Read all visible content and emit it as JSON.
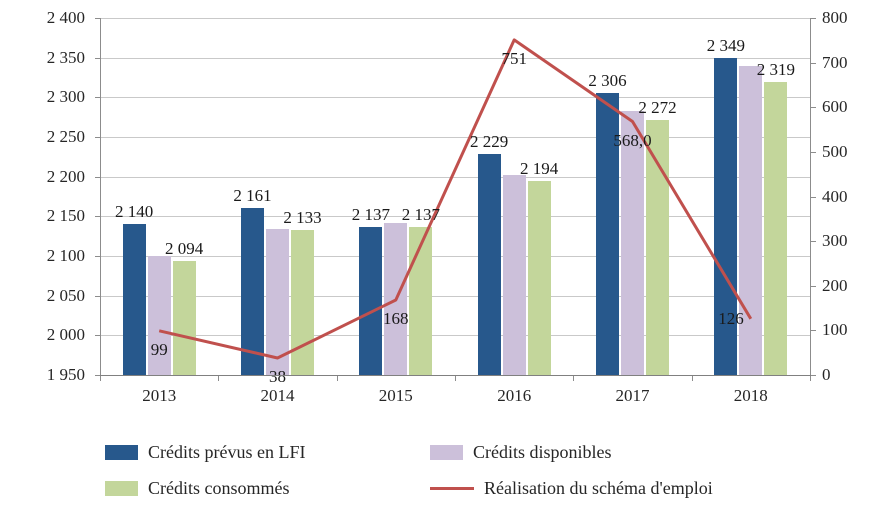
{
  "chart_data": {
    "type": "bar",
    "subtype": "combo-bar-line",
    "title": "",
    "categories": [
      "2013",
      "2014",
      "2015",
      "2016",
      "2017",
      "2018"
    ],
    "series": [
      {
        "name": "Crédits prévus en LFI",
        "type": "bar",
        "axis": "left",
        "color": "#27588C",
        "values": [
          2140,
          2161,
          2137,
          2229,
          2306,
          2349
        ],
        "labels": [
          "2 140",
          "2 161",
          "2 137",
          "2 229",
          "2 306",
          "2 349"
        ]
      },
      {
        "name": "Crédits disponibles",
        "type": "bar",
        "axis": "left",
        "color": "#CCC0DA",
        "values": [
          2100,
          2134,
          2141,
          2202,
          2283,
          2340
        ],
        "labels": [
          null,
          null,
          null,
          null,
          null,
          null
        ]
      },
      {
        "name": "Crédits consommés",
        "type": "bar",
        "axis": "left",
        "color": "#C3D69B",
        "values": [
          2094,
          2133,
          2137,
          2194,
          2272,
          2319
        ],
        "labels": [
          "2 094",
          "2 133",
          "2 137",
          "2 194",
          "2 272",
          "2 319"
        ]
      },
      {
        "name": "Réalisation du schéma d'emploi",
        "type": "line",
        "axis": "right",
        "color": "#C0504D",
        "values": [
          99,
          38,
          168,
          751,
          568,
          126
        ],
        "labels": [
          "99",
          "38",
          "168",
          "751",
          "568,0",
          "126"
        ],
        "label_placement": [
          "below",
          "below",
          "below",
          "below",
          "below",
          "left"
        ]
      }
    ],
    "left_axis": {
      "min": 1950,
      "max": 2400,
      "step": 50,
      "tick_labels": [
        "1 950",
        "2 000",
        "2 050",
        "2 100",
        "2 150",
        "2 200",
        "2 250",
        "2 300",
        "2 350",
        "2 400"
      ]
    },
    "right_axis": {
      "min": 0,
      "max": 800,
      "step": 100,
      "tick_labels": [
        "0",
        "100",
        "200",
        "300",
        "400",
        "500",
        "600",
        "700",
        "800"
      ]
    },
    "grid": true,
    "legend_position": "bottom"
  },
  "legend": {
    "items": [
      {
        "label": "Crédits prévus en LFI",
        "swatch": "bar",
        "color": "#27588C"
      },
      {
        "label": "Crédits disponibles",
        "swatch": "bar",
        "color": "#CCC0DA"
      },
      {
        "label": "Crédits consommés",
        "swatch": "bar",
        "color": "#C3D69B"
      },
      {
        "label": "Réalisation du schéma d'emploi",
        "swatch": "line",
        "color": "#C0504D"
      }
    ]
  },
  "colors": {
    "grid": "#C9C9C9",
    "axis": "#8C8C8C",
    "text": "#262626",
    "background": "#FFFFFF"
  }
}
